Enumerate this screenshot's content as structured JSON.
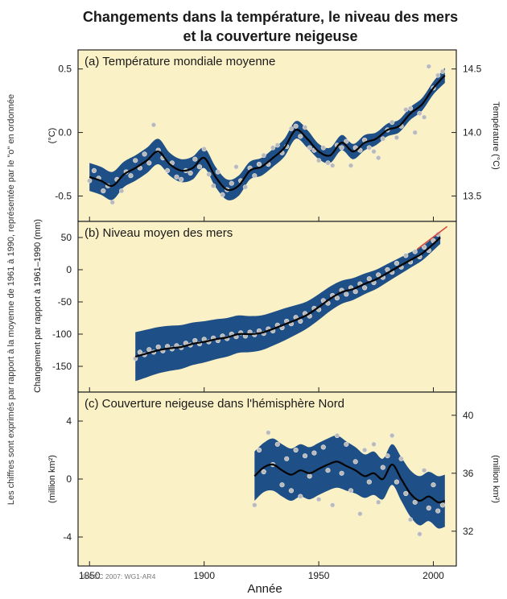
{
  "title_line1": "Changements dans la température, le niveau des mers",
  "title_line2": "et la couverture neigeuse",
  "side_note": "Les chiffres sont exprimés par rapport à la moyenne de 1961 à 1990, représentée par le \"o\" en ordonnée",
  "left_shared_ylabel": "Changement par rapport à 1961–1990 (mm)",
  "xlabel": "Année",
  "credit": "©IPCC 2007: WG1-AR4",
  "colors": {
    "panel_bg": "#fbf1c6",
    "band": "#1e4f86",
    "curve": "#050505",
    "point_fill": "#b9b9b9",
    "point_edge": "#e6e6e6",
    "trend": "#d8473a"
  },
  "chart_data": [
    {
      "type": "line",
      "panel_title": "(a) Température mondiale moyenne",
      "ylabel": "(°C)",
      "ylabel_right": "Température (°C)",
      "xlim": [
        1845,
        2010
      ],
      "ylim": [
        -0.7,
        0.65
      ],
      "yticks": [
        -0.5,
        0.0,
        0.5
      ],
      "ytick_labels": [
        "-0.5",
        "0.0",
        "0.5"
      ],
      "yticks_right": [
        13.5,
        14.0,
        14.5
      ],
      "ytick_labels_right": [
        "13.5",
        "14.0",
        "14.5"
      ],
      "right_axis_offset": 14.0,
      "smoothed": {
        "x": [
          1850,
          1855,
          1860,
          1865,
          1870,
          1875,
          1880,
          1885,
          1890,
          1895,
          1900,
          1905,
          1910,
          1915,
          1920,
          1925,
          1930,
          1935,
          1940,
          1945,
          1950,
          1955,
          1960,
          1965,
          1970,
          1975,
          1980,
          1985,
          1990,
          1995,
          2000,
          2005
        ],
        "y": [
          -0.35,
          -0.38,
          -0.42,
          -0.33,
          -0.28,
          -0.22,
          -0.15,
          -0.25,
          -0.3,
          -0.28,
          -0.2,
          -0.35,
          -0.45,
          -0.42,
          -0.3,
          -0.27,
          -0.2,
          -0.12,
          0.02,
          -0.05,
          -0.15,
          -0.18,
          -0.08,
          -0.15,
          -0.08,
          -0.05,
          0.02,
          0.05,
          0.15,
          0.22,
          0.35,
          0.45
        ]
      },
      "uncertainty": [
        0.11,
        0.11,
        0.11,
        0.1,
        0.1,
        0.1,
        0.1,
        0.09,
        0.09,
        0.09,
        0.08,
        0.08,
        0.08,
        0.08,
        0.07,
        0.07,
        0.07,
        0.07,
        0.07,
        0.07,
        0.06,
        0.06,
        0.06,
        0.06,
        0.06,
        0.05,
        0.05,
        0.05,
        0.05,
        0.05,
        0.05,
        0.06
      ],
      "points_x": [
        1850,
        1852,
        1854,
        1856,
        1858,
        1860,
        1862,
        1864,
        1866,
        1868,
        1870,
        1872,
        1874,
        1876,
        1878,
        1880,
        1882,
        1884,
        1886,
        1888,
        1890,
        1892,
        1894,
        1896,
        1898,
        1900,
        1902,
        1904,
        1906,
        1908,
        1910,
        1912,
        1914,
        1916,
        1918,
        1920,
        1922,
        1924,
        1926,
        1928,
        1930,
        1932,
        1934,
        1936,
        1938,
        1940,
        1942,
        1944,
        1946,
        1948,
        1950,
        1952,
        1954,
        1956,
        1958,
        1960,
        1962,
        1964,
        1966,
        1968,
        1970,
        1972,
        1974,
        1976,
        1978,
        1980,
        1982,
        1984,
        1986,
        1988,
        1990,
        1992,
        1994,
        1996,
        1998,
        2000,
        2002,
        2004
      ],
      "points_y": [
        -0.38,
        -0.3,
        -0.36,
        -0.46,
        -0.42,
        -0.55,
        -0.37,
        -0.46,
        -0.31,
        -0.34,
        -0.22,
        -0.28,
        -0.17,
        -0.24,
        0.06,
        -0.14,
        -0.2,
        -0.3,
        -0.24,
        -0.35,
        -0.37,
        -0.3,
        -0.32,
        -0.21,
        -0.27,
        -0.13,
        -0.33,
        -0.42,
        -0.31,
        -0.49,
        -0.45,
        -0.4,
        -0.27,
        -0.38,
        -0.43,
        -0.28,
        -0.34,
        -0.25,
        -0.18,
        -0.25,
        -0.12,
        -0.1,
        -0.16,
        -0.11,
        0.03,
        0.05,
        -0.03,
        0.04,
        -0.12,
        -0.14,
        -0.22,
        -0.12,
        -0.24,
        -0.26,
        -0.1,
        -0.12,
        -0.07,
        -0.26,
        -0.12,
        -0.14,
        -0.06,
        -0.12,
        -0.15,
        -0.2,
        -0.05,
        0.02,
        0.08,
        -0.04,
        0.05,
        0.18,
        0.19,
        0.0,
        0.15,
        0.12,
        0.52,
        0.35,
        0.45,
        0.48
      ]
    },
    {
      "type": "line",
      "panel_title": "(b) Niveau moyen des mers",
      "ylabel": "",
      "xlim": [
        1845,
        2010
      ],
      "ylim": [
        -190,
        75
      ],
      "yticks": [
        -150,
        -100,
        -50,
        0,
        50
      ],
      "ytick_labels": [
        "-150",
        "-100",
        "-50",
        "0",
        "50"
      ],
      "smoothed": {
        "x": [
          1870,
          1875,
          1880,
          1885,
          1890,
          1895,
          1900,
          1905,
          1910,
          1915,
          1920,
          1925,
          1930,
          1935,
          1940,
          1945,
          1950,
          1955,
          1960,
          1965,
          1970,
          1975,
          1980,
          1985,
          1990,
          1995,
          2000,
          2003
        ],
        "y": [
          -135,
          -130,
          -125,
          -122,
          -120,
          -115,
          -112,
          -108,
          -105,
          -100,
          -100,
          -98,
          -92,
          -85,
          -78,
          -70,
          -58,
          -45,
          -35,
          -30,
          -22,
          -15,
          -5,
          5,
          15,
          25,
          40,
          50
        ]
      },
      "uncertainty": [
        38,
        37,
        36,
        35,
        34,
        33,
        32,
        31,
        30,
        29,
        28,
        27,
        26,
        25,
        23,
        21,
        20,
        19,
        18,
        17,
        16,
        15,
        14,
        13,
        12,
        11,
        10,
        10
      ],
      "trend": {
        "x": [
          1993,
          2006
        ],
        "y": [
          32,
          67
        ]
      },
      "points_x": [
        1870,
        1872,
        1874,
        1876,
        1878,
        1880,
        1882,
        1884,
        1886,
        1888,
        1890,
        1892,
        1894,
        1896,
        1898,
        1900,
        1902,
        1904,
        1906,
        1908,
        1910,
        1912,
        1914,
        1916,
        1918,
        1920,
        1922,
        1924,
        1926,
        1928,
        1930,
        1932,
        1934,
        1936,
        1938,
        1940,
        1942,
        1944,
        1946,
        1948,
        1950,
        1952,
        1954,
        1956,
        1958,
        1960,
        1962,
        1964,
        1966,
        1968,
        1970,
        1972,
        1974,
        1976,
        1978,
        1980,
        1982,
        1984,
        1986,
        1988,
        1990,
        1992,
        1994,
        1996,
        1998,
        2000,
        2002
      ],
      "points_y": [
        -138,
        -128,
        -132,
        -124,
        -128,
        -120,
        -126,
        -119,
        -123,
        -118,
        -121,
        -114,
        -117,
        -110,
        -115,
        -108,
        -112,
        -106,
        -110,
        -103,
        -107,
        -100,
        -104,
        -98,
        -103,
        -97,
        -101,
        -95,
        -99,
        -92,
        -95,
        -86,
        -90,
        -80,
        -84,
        -74,
        -80,
        -68,
        -72,
        -60,
        -62,
        -48,
        -52,
        -40,
        -44,
        -32,
        -38,
        -28,
        -34,
        -22,
        -28,
        -14,
        -20,
        -8,
        -12,
        0,
        -4,
        10,
        4,
        22,
        12,
        28,
        20,
        35,
        30,
        45,
        55
      ]
    },
    {
      "type": "line",
      "panel_title": "(c) Couverture neigeuse dans l'hémisphère Nord",
      "ylabel": "(million km²)",
      "ylabel_right": "(million km²)",
      "xlim": [
        1845,
        2010
      ],
      "ylim": [
        -6,
        6
      ],
      "yticks": [
        -4,
        0,
        4
      ],
      "ytick_labels": [
        "-4",
        "0",
        "4"
      ],
      "yticks_right": [
        32,
        36,
        40
      ],
      "ytick_labels_right": [
        "32",
        "36",
        "40"
      ],
      "right_axis_offset": 35.6,
      "smoothed": {
        "x": [
          1922,
          1926,
          1930,
          1934,
          1938,
          1942,
          1946,
          1950,
          1954,
          1958,
          1962,
          1966,
          1970,
          1974,
          1978,
          1982,
          1986,
          1990,
          1994,
          1998,
          2002,
          2005
        ],
        "y": [
          0.2,
          0.8,
          1.0,
          0.6,
          0.3,
          0.6,
          0.4,
          0.7,
          1.0,
          1.2,
          0.9,
          0.6,
          0.2,
          0.4,
          0.0,
          1.0,
          0.0,
          -1.0,
          -1.5,
          -1.2,
          -1.6,
          -1.5
        ]
      },
      "uncertainty": [
        1.7,
        1.7,
        1.8,
        1.8,
        1.8,
        1.8,
        1.8,
        1.8,
        1.8,
        1.8,
        1.7,
        1.6,
        1.5,
        1.5,
        1.4,
        1.4,
        1.5,
        1.6,
        1.7,
        1.7,
        1.8,
        1.8
      ],
      "points_x": [
        1922,
        1924,
        1926,
        1928,
        1930,
        1932,
        1934,
        1936,
        1938,
        1940,
        1942,
        1944,
        1946,
        1948,
        1950,
        1952,
        1954,
        1956,
        1958,
        1960,
        1962,
        1964,
        1966,
        1968,
        1970,
        1972,
        1974,
        1976,
        1978,
        1980,
        1982,
        1984,
        1986,
        1988,
        1990,
        1992,
        1994,
        1996,
        1998,
        2000,
        2002,
        2004
      ],
      "points_y": [
        -1.8,
        2.0,
        0.5,
        3.2,
        1.0,
        2.4,
        -0.4,
        1.4,
        -0.8,
        2.0,
        -1.2,
        1.6,
        0.2,
        1.8,
        -1.4,
        2.2,
        0.6,
        -1.8,
        3.0,
        0.4,
        2.4,
        -0.8,
        1.2,
        -2.4,
        2.0,
        -0.2,
        2.4,
        -1.6,
        0.8,
        1.6,
        3.0,
        -0.2,
        1.4,
        -1.0,
        -2.8,
        -1.6,
        -3.8,
        0.6,
        -2.0,
        -0.4,
        -2.2,
        -1.8
      ]
    }
  ]
}
